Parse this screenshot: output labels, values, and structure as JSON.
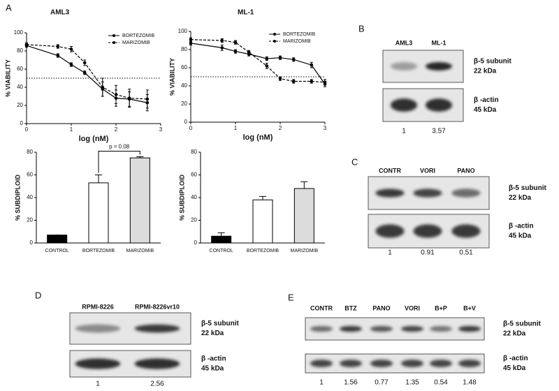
{
  "panel_a_letter": "A",
  "chart_data": [
    {
      "type": "line",
      "title": "AML3",
      "xlabel": "log (nM)",
      "ylabel": "% VIABILITY",
      "xlim": [
        0,
        3
      ],
      "xticks": [
        0,
        1,
        2,
        3
      ],
      "ylim": [
        0,
        100
      ],
      "yticks": [
        0,
        20,
        40,
        60,
        80,
        100
      ],
      "threshold": 50,
      "x": [
        0,
        0.7,
        1,
        1.3,
        1.7,
        2,
        2.3,
        2.7
      ],
      "series": [
        {
          "name": "BORTEZOMIB",
          "color": "#000000",
          "dash": false,
          "values": [
            86,
            75,
            65,
            56,
            38,
            28,
            27,
            23
          ],
          "errors": [
            2,
            2,
            2,
            2,
            8,
            9,
            8,
            9
          ]
        },
        {
          "name": "MARIZOMIB",
          "color": "#000000",
          "dash": true,
          "values": [
            87,
            85,
            82,
            67,
            40,
            32,
            28,
            27
          ],
          "errors": [
            2,
            2,
            3,
            3,
            10,
            10,
            10,
            10
          ]
        }
      ]
    },
    {
      "type": "line",
      "title": "ML-1",
      "xlabel": "log (nM)",
      "ylabel": "% VIABILITY",
      "xlim": [
        0,
        3
      ],
      "xticks": [
        0,
        1,
        2,
        3
      ],
      "ylim": [
        0,
        100
      ],
      "yticks": [
        0,
        20,
        40,
        60,
        80,
        100
      ],
      "threshold": 50,
      "x": [
        0,
        0.7,
        1,
        1.3,
        1.7,
        2,
        2.3,
        2.7,
        3
      ],
      "series": [
        {
          "name": "BORTEZOMIB",
          "color": "#000000",
          "dash": false,
          "values": [
            87,
            82,
            78,
            75,
            70,
            71,
            69,
            63,
            42
          ],
          "errors": [
            2,
            3,
            2,
            2,
            2,
            2,
            2,
            3,
            3
          ]
        },
        {
          "name": "MARIZOMIB",
          "color": "#000000",
          "dash": true,
          "values": [
            91,
            90,
            88,
            77,
            62,
            48,
            45,
            45,
            44
          ],
          "errors": [
            2,
            2,
            2,
            2,
            3,
            2,
            2,
            2,
            3
          ]
        }
      ]
    },
    {
      "type": "bar",
      "ylabel": "% SUBDIPLOID",
      "ylim": [
        0,
        80
      ],
      "yticks": [
        0,
        20,
        40,
        60,
        80
      ],
      "categories": [
        "CONTROL",
        "BORTEZOMIB",
        "MARIZOMIB"
      ],
      "values": [
        7,
        53,
        75
      ],
      "errors": [
        0,
        7,
        1
      ],
      "colors": [
        "#000000",
        "#ffffff",
        "#dcdcdc"
      ],
      "annotation": "p = 0.08"
    },
    {
      "type": "bar",
      "ylabel": "% SUBDIPLOID",
      "ylim": [
        0,
        80
      ],
      "yticks": [
        0,
        20,
        40,
        60,
        80
      ],
      "categories": [
        "CONTROL",
        "BORTEZOMIB",
        "MARIZOMIB"
      ],
      "values": [
        6,
        38,
        48
      ],
      "errors": [
        3,
        3,
        6
      ],
      "colors": [
        "#000000",
        "#ffffff",
        "#dcdcdc"
      ]
    }
  ],
  "blots": [
    {
      "letter": "B",
      "lanes": [
        "AML3",
        "ML-1"
      ],
      "rows": [
        [
          "β-5 subunit",
          "22 kDa"
        ],
        [
          "β -actin",
          "45 kDa"
        ]
      ],
      "quantification": [
        1,
        3.57
      ]
    },
    {
      "letter": "C",
      "lanes": [
        "CONTR",
        "VORI",
        "PANO"
      ],
      "rows": [
        [
          "β-5 subunit",
          "22 kDa"
        ],
        [
          "β -actin",
          "45 kDa"
        ]
      ],
      "quantification": [
        1,
        0.91,
        0.51
      ]
    },
    {
      "letter": "D",
      "lanes": [
        "RPMI-8226",
        "RPMI-8226vr10"
      ],
      "rows": [
        [
          "β-5 subunit",
          "22 kDa"
        ],
        [
          "β -actin",
          "45 kDa"
        ]
      ],
      "quantification": [
        1,
        2.56
      ]
    },
    {
      "letter": "E",
      "lanes": [
        "CONTR",
        "BTZ",
        "PANO",
        "VORI",
        "B+P",
        "B+V"
      ],
      "rows": [
        [
          "β-5 subunit",
          "22 kDa"
        ],
        [
          "β -actin",
          "45 kDa"
        ]
      ],
      "quantification": [
        1,
        1.56,
        0.77,
        1.35,
        0.54,
        1.48
      ]
    }
  ]
}
